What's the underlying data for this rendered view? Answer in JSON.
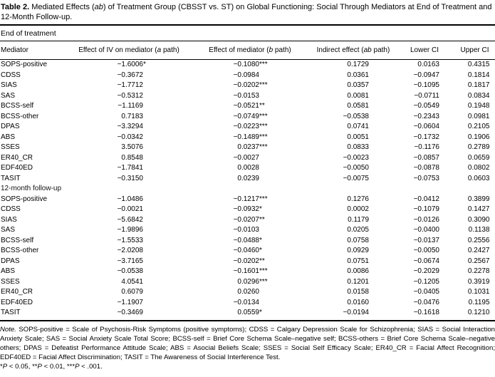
{
  "caption": {
    "label": "Table 2.",
    "pre": "  Mediated Effects (",
    "italic": "ab",
    "post_line1": ") of Treatment Group (CBSST vs. ST) on Global Functioning: Social Through Mediators at End of Treatment and",
    "line2": "12-Month Follow-up."
  },
  "table": {
    "columns": [
      {
        "pre": "Mediator",
        "it": "",
        "post": ""
      },
      {
        "pre": "Effect of IV on mediator (",
        "it": "a",
        "post": " path)"
      },
      {
        "pre": "Effect of mediator (",
        "it": "b",
        "post": " path)"
      },
      {
        "pre": "Indirect effect (",
        "it": "ab",
        "post": " path)"
      },
      {
        "pre": "Lower CI",
        "it": "",
        "post": ""
      },
      {
        "pre": "Upper CI",
        "it": "",
        "post": ""
      }
    ],
    "sections": [
      {
        "label": "End of treatment",
        "label_position": "above_header",
        "rows": [
          {
            "mediator": "SOPS-positive",
            "a": "−1.6006",
            "a_sig": "*",
            "b": "−0.1080",
            "b_sig": "***",
            "ab": "0.1729",
            "lower": "0.0163",
            "upper": "0.4315"
          },
          {
            "mediator": "CDSS",
            "a": "−0.3672",
            "a_sig": "",
            "b": "−0.0984",
            "b_sig": "",
            "ab": "0.0361",
            "lower": "−0.0947",
            "upper": "0.1814"
          },
          {
            "mediator": "SIAS",
            "a": "−1.7712",
            "a_sig": "",
            "b": "−0.0202",
            "b_sig": "***",
            "ab": "0.0357",
            "lower": "−0.1095",
            "upper": "0.1817"
          },
          {
            "mediator": "SAS",
            "a": "−0.5312",
            "a_sig": "",
            "b": "−0.0153",
            "b_sig": "",
            "ab": "0.0081",
            "lower": "−0.0711",
            "upper": "0.0834"
          },
          {
            "mediator": "BCSS-self",
            "a": "−1.1169",
            "a_sig": "",
            "b": "−0.0521",
            "b_sig": "**",
            "ab": "0.0581",
            "lower": "−0.0549",
            "upper": "0.1948"
          },
          {
            "mediator": "BCSS-other",
            "a": "0.7183",
            "a_sig": "",
            "b": "−0.0749",
            "b_sig": "***",
            "ab": "−0.0538",
            "lower": "−0.2343",
            "upper": "0.0981"
          },
          {
            "mediator": "DPAS",
            "a": "−3.3294",
            "a_sig": "",
            "b": "−0.0223",
            "b_sig": "***",
            "ab": "0.0741",
            "lower": "−0.0604",
            "upper": "0.2105"
          },
          {
            "mediator": "ABS",
            "a": "−0.0342",
            "a_sig": "",
            "b": "−0.1489",
            "b_sig": "***",
            "ab": "0.0051",
            "lower": "−0.1732",
            "upper": "0.1906"
          },
          {
            "mediator": "SSES",
            "a": "3.5076",
            "a_sig": "",
            "b": "0.0237",
            "b_sig": "***",
            "ab": "0.0833",
            "lower": "−0.1176",
            "upper": "0.2789"
          },
          {
            "mediator": "ER40_CR",
            "a": "0.8548",
            "a_sig": "",
            "b": "−0.0027",
            "b_sig": "",
            "ab": "−0.0023",
            "lower": "−0.0857",
            "upper": "0.0659"
          },
          {
            "mediator": "EDF40ED",
            "a": "−1.7841",
            "a_sig": "",
            "b": "0.0028",
            "b_sig": "",
            "ab": "−0.0050",
            "lower": "−0.0878",
            "upper": "0.0802"
          },
          {
            "mediator": "TASIT",
            "a": "−0.3150",
            "a_sig": "",
            "b": "0.0239",
            "b_sig": "",
            "ab": "−0.0075",
            "lower": "−0.0753",
            "upper": "0.0603"
          }
        ]
      },
      {
        "label": "12-month follow-up",
        "label_position": "in_body",
        "rows": [
          {
            "mediator": "SOPS-positive",
            "a": "−1.0486",
            "a_sig": "",
            "b": "−0.1217",
            "b_sig": "***",
            "ab": "0.1276",
            "lower": "−0.0412",
            "upper": "0.3899"
          },
          {
            "mediator": "CDSS",
            "a": "−0.0021",
            "a_sig": "",
            "b": "−0.0932",
            "b_sig": "*",
            "ab": "0.0002",
            "lower": "−0.1079",
            "upper": "0.1427"
          },
          {
            "mediator": "SIAS",
            "a": "−5.6842",
            "a_sig": "",
            "b": "−0.0207",
            "b_sig": "**",
            "ab": "0.1179",
            "lower": "−0.0126",
            "upper": "0.3090"
          },
          {
            "mediator": "SAS",
            "a": "−1.9896",
            "a_sig": "",
            "b": "−0.0103",
            "b_sig": "",
            "ab": "0.0205",
            "lower": "−0.0400",
            "upper": "0.1138"
          },
          {
            "mediator": "BCSS-self",
            "a": "−1.5533",
            "a_sig": "",
            "b": "−0.0488",
            "b_sig": "*",
            "ab": "0.0758",
            "lower": "−0.0137",
            "upper": "0.2556"
          },
          {
            "mediator": "BCSS-other",
            "a": "−2.0208",
            "a_sig": "",
            "b": "−0.0460",
            "b_sig": "*",
            "ab": "0.0929",
            "lower": "−0.0050",
            "upper": "0.2427"
          },
          {
            "mediator": "DPAS",
            "a": "−3.7165",
            "a_sig": "",
            "b": "−0.0202",
            "b_sig": "**",
            "ab": "0.0751",
            "lower": "−0.0674",
            "upper": "0.2567"
          },
          {
            "mediator": "ABS",
            "a": "−0.0538",
            "a_sig": "",
            "b": "−0.1601",
            "b_sig": "***",
            "ab": "0.0086",
            "lower": "−0.2029",
            "upper": "0.2278"
          },
          {
            "mediator": "SSES",
            "a": "4.0541",
            "a_sig": "",
            "b": "0.0296",
            "b_sig": "***",
            "ab": "0.1201",
            "lower": "−0.1205",
            "upper": "0.3919"
          },
          {
            "mediator": "ER40_CR",
            "a": "0.6079",
            "a_sig": "",
            "b": "0.0260",
            "b_sig": "",
            "ab": "0.0158",
            "lower": "−0.0405",
            "upper": "0.1031"
          },
          {
            "mediator": "EDF40ED",
            "a": "−1.1907",
            "a_sig": "",
            "b": "−0.0134",
            "b_sig": "",
            "ab": "0.0160",
            "lower": "−0.0476",
            "upper": "0.1195"
          },
          {
            "mediator": "TASIT",
            "a": "−0.3469",
            "a_sig": "",
            "b": "0.0559",
            "b_sig": "*",
            "ab": "−0.0194",
            "lower": "−0.1618",
            "upper": "0.1210"
          }
        ]
      }
    ]
  },
  "note": {
    "label": "Note.",
    "text": " SOPS-positive = Scale of Psychosis-Risk Symptoms (positive symptoms); CDSS = Calgary Depression Scale for Schizophrenia; SIAS = Social Interaction Anxiety Scale; SAS = Social Anxiety Scale Total Score; BCSS-self = Brief Core Schema Scale–negative self; BCSS-others = Brief Core Schema Scale–negative others; DPAS = Defeatist Performance Attitude Scale; ABS = Asocial Beliefs Scale; SSES = Social Self Efficacy Scale; ER40_CR = Facial Affect Recognition; EDF40ED = Facial Affect Discrimination; TASIT = The Awareness of Social Interference Test."
  },
  "significance": [
    {
      "stars": "*",
      "p": "P",
      "rest": " < 0.05, "
    },
    {
      "stars": "**",
      "p": "P",
      "rest": " < 0.01, "
    },
    {
      "stars": "***",
      "p": "P",
      "rest": " < .001."
    }
  ]
}
